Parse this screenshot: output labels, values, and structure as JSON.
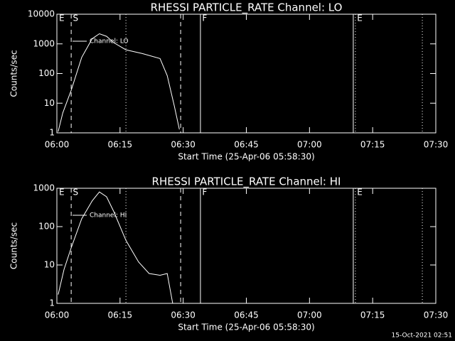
{
  "chart_data": [
    {
      "type": "line",
      "title": "RHESSI PARTICLE_RATE Channel: LO",
      "xlabel": "Start Time (25-Apr-06 05:58:30)",
      "ylabel": "Counts/sec",
      "log_y": true,
      "xlim": [
        0,
        90
      ],
      "ylim": [
        1,
        10000
      ],
      "xticks": [
        {
          "value": 0,
          "label": "06:00"
        },
        {
          "value": 15,
          "label": "06:15"
        },
        {
          "value": 30,
          "label": "06:30"
        },
        {
          "value": 45,
          "label": "06:45"
        },
        {
          "value": 60,
          "label": "07:00"
        },
        {
          "value": 75,
          "label": "07:15"
        },
        {
          "value": 90,
          "label": "07:30"
        }
      ],
      "yticks": [
        1,
        10,
        100,
        1000,
        10000
      ],
      "series": [
        {
          "name": "Channel: LO",
          "color": "#ffffff",
          "x": [
            0.3,
            1.4,
            3.4,
            5.9,
            8.4,
            10.1,
            11.8,
            13.5,
            16.4,
            20.3,
            24.5,
            26.2,
            27.9,
            29.1
          ],
          "values": [
            1.1,
            4.7,
            27,
            350,
            1500,
            2200,
            1800,
            1100,
            630,
            470,
            320,
            85,
            8,
            1.3
          ]
        }
      ],
      "vlines": [
        {
          "x": 3.4,
          "style": "dashed"
        },
        {
          "x": 16.4,
          "style": "dotted"
        },
        {
          "x": 29.4,
          "style": "dashed"
        },
        {
          "x": 34.1,
          "style": "solid"
        },
        {
          "x": 70.4,
          "style": "solid"
        },
        {
          "x": 70.9,
          "style": "dotted"
        },
        {
          "x": 86.8,
          "style": "dotted"
        }
      ],
      "flags": [
        {
          "x": 0.5,
          "label": "E"
        },
        {
          "x": 3.8,
          "label": "S"
        },
        {
          "x": 34.5,
          "label": "F"
        },
        {
          "x": 71.3,
          "label": "E"
        }
      ]
    },
    {
      "type": "line",
      "title": "RHESSI PARTICLE_RATE Channel: HI",
      "xlabel": "Start Time (25-Apr-06 05:58:30)",
      "ylabel": "Counts/sec",
      "log_y": true,
      "xlim": [
        0,
        90
      ],
      "ylim": [
        1,
        1000
      ],
      "xticks": [
        {
          "value": 0,
          "label": "06:00"
        },
        {
          "value": 15,
          "label": "06:15"
        },
        {
          "value": 30,
          "label": "06:30"
        },
        {
          "value": 45,
          "label": "06:45"
        },
        {
          "value": 60,
          "label": "07:00"
        },
        {
          "value": 75,
          "label": "07:15"
        },
        {
          "value": 90,
          "label": "07:30"
        }
      ],
      "yticks": [
        1,
        10,
        100,
        1000
      ],
      "series": [
        {
          "name": "Channel: HI",
          "color": "#ffffff",
          "x": [
            0.3,
            1.7,
            3.4,
            5.9,
            8.4,
            10.1,
            11.8,
            13.5,
            16.4,
            19.4,
            21.9,
            24.5,
            26.2,
            27.0,
            27.5
          ],
          "values": [
            1.7,
            7.7,
            28,
            160,
            470,
            800,
            600,
            250,
            44,
            12,
            6,
            5.4,
            6,
            2,
            1
          ]
        }
      ],
      "vlines": [
        {
          "x": 3.4,
          "style": "dashed"
        },
        {
          "x": 16.4,
          "style": "dotted"
        },
        {
          "x": 29.4,
          "style": "dashed"
        },
        {
          "x": 34.1,
          "style": "solid"
        },
        {
          "x": 70.4,
          "style": "solid"
        },
        {
          "x": 70.9,
          "style": "dotted"
        },
        {
          "x": 86.8,
          "style": "dotted"
        }
      ],
      "flags": [
        {
          "x": 0.5,
          "label": "E"
        },
        {
          "x": 3.8,
          "label": "S"
        },
        {
          "x": 34.5,
          "label": "F"
        },
        {
          "x": 71.3,
          "label": "E"
        }
      ]
    }
  ],
  "footer": "15-Oct-2021 02:51"
}
